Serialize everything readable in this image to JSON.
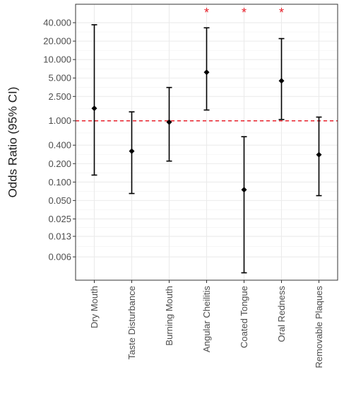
{
  "chart_data": {
    "type": "scatter",
    "title": "",
    "xlabel": "",
    "ylabel": "Odds Ratio (95% CI)",
    "y_scale": "log",
    "ylim": [
      0.0025,
      80
    ],
    "y_ticks": [
      0.006,
      0.013,
      0.025,
      0.05,
      0.1,
      0.2,
      0.4,
      1.0,
      2.5,
      5.0,
      10.0,
      20.0,
      40.0
    ],
    "y_tick_labels": [
      "0.006",
      "0.013",
      "0.025",
      "0.050",
      "0.100",
      "0.200",
      "0.400",
      "1.000",
      "2.500",
      "5.000",
      "10.000",
      "20.000",
      "40.000"
    ],
    "reference_line": {
      "y": 1.0,
      "style": "dashed",
      "color": "#e8212b"
    },
    "grid": true,
    "legend": "none",
    "marker_color": "#000000",
    "categories": [
      "Dry Mouth",
      "Taste Disturbance",
      "Burning Mouth",
      "Angular Cheilitis",
      "Coated Tongue",
      "Oral Redness",
      "Removable Plaques"
    ],
    "estimates": [
      1.6,
      0.32,
      0.95,
      6.2,
      0.075,
      4.5,
      0.28
    ],
    "ci_lower": [
      0.13,
      0.065,
      0.22,
      1.5,
      0.0033,
      1.05,
      0.06
    ],
    "ci_upper": [
      37,
      1.4,
      3.5,
      33,
      0.55,
      22,
      1.15
    ],
    "significance_marker": "*",
    "significant": [
      false,
      false,
      false,
      true,
      true,
      true,
      false
    ]
  }
}
